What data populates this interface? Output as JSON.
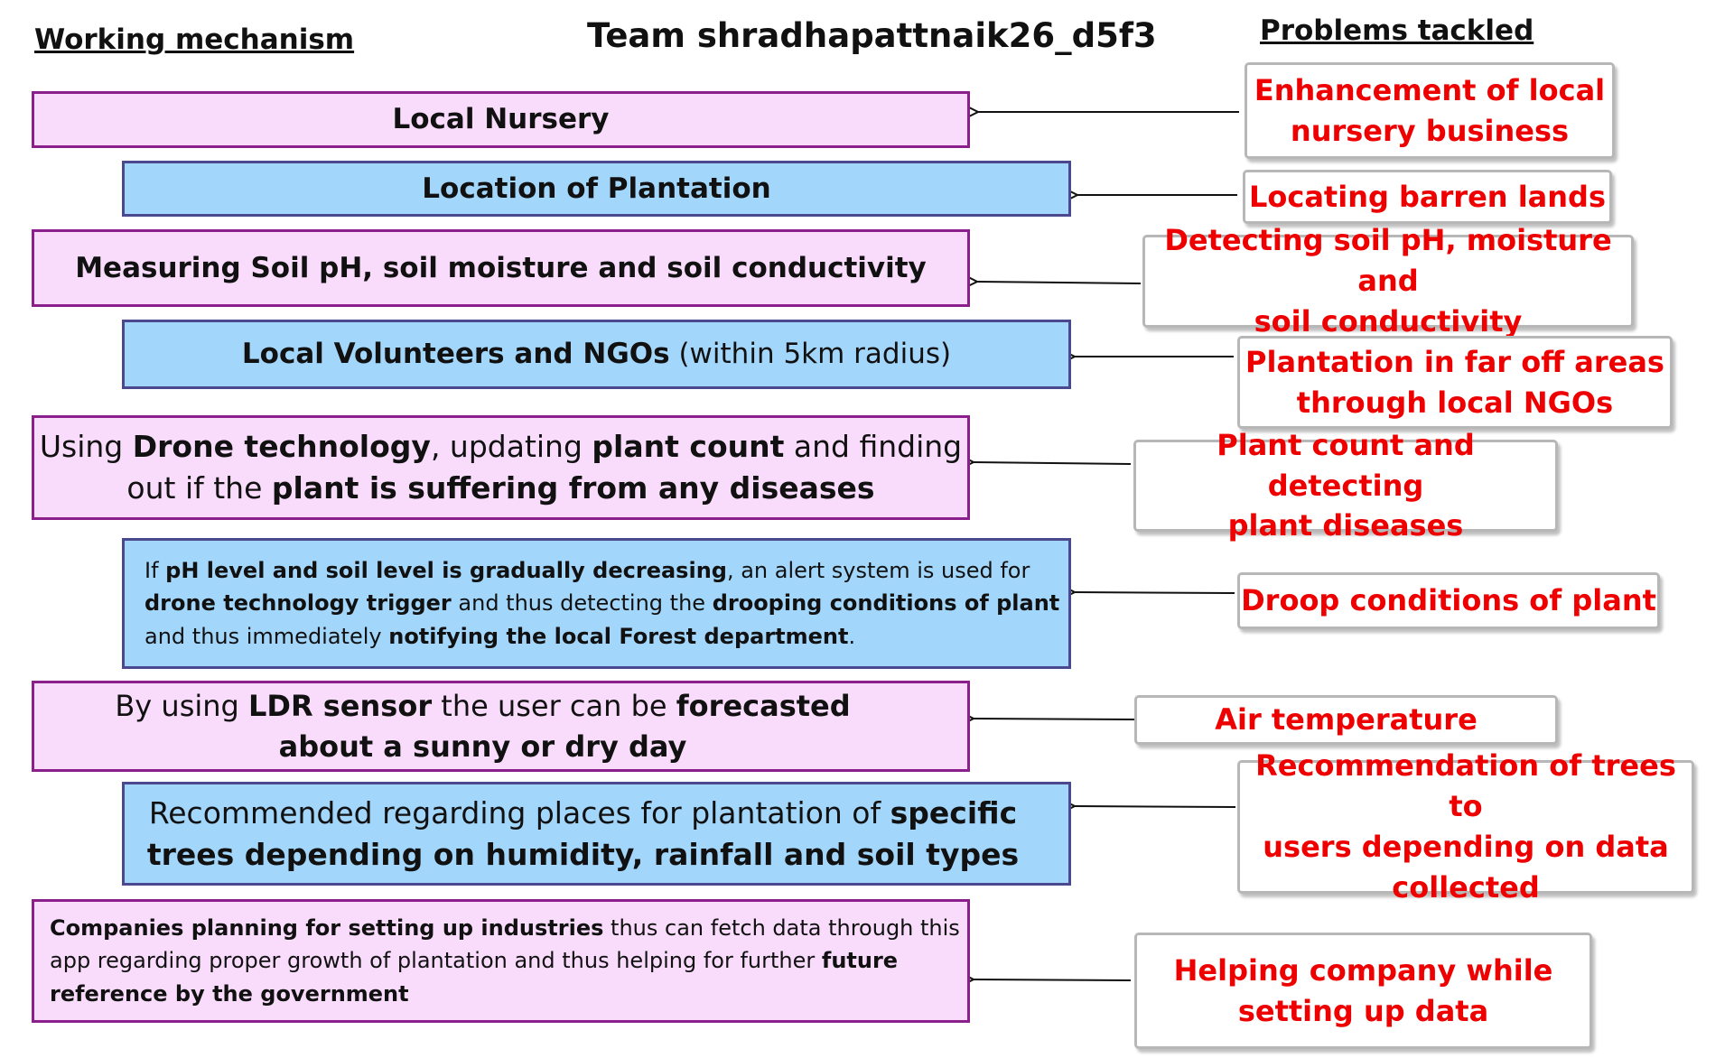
{
  "headers": {
    "working_mechanism": "Working mechanism",
    "team": "Team shradhapattnaik26_d5f3",
    "problems_tackled": "Problems tackled"
  },
  "mechanism": {
    "local_nursery": "Local Nursery",
    "location": "Location of Plantation",
    "soil": "Measuring Soil pH, soil moisture and soil conductivity",
    "volunteers_bold": "Local Volunteers and NGOs",
    "volunteers_rest": " (within 5km radius)",
    "drone": {
      "t1": "Using ",
      "b1": "Drone technology",
      "t2": ", updating ",
      "b2": "plant count",
      "t3": " and finding",
      "t4": "out if the ",
      "b3": "plant is suffering from any diseases"
    },
    "alert": {
      "t1": "If ",
      "b1": "pH level and soil level is gradually decreasing",
      "t2": ", an alert system is used for",
      "b2": "drone technology trigger",
      "t3": " and thus detecting the ",
      "b3": "drooping conditions of plant",
      "t4": "and thus immediately ",
      "b4": "notifying the local Forest department",
      "t5": "."
    },
    "ldr": {
      "t1": "By using ",
      "b1": "LDR sensor",
      "t2": " the user can be ",
      "b2": "forecasted",
      "b3": "about a sunny or dry day"
    },
    "recommend": {
      "t1": "Recommended regarding places for plantation of ",
      "b1": "specific",
      "b2": "trees depending on humidity, rainfall and soil types"
    },
    "companies": {
      "b1": "Companies planning for setting up industries",
      "t1": " thus can fetch data through this",
      "t2": "app regarding proper growth of plantation and thus helping for further ",
      "b2": "future",
      "b3": "reference by the government"
    }
  },
  "problems": {
    "p1_l1": "Enhancement of local",
    "p1_l2": "nursery business",
    "p2": "Locating barren lands",
    "p3_l1": "Detecting soil pH, moisture and",
    "p3_l2": "soil conductivity",
    "p4_l1": "Plantation in far off areas",
    "p4_l2": "through local NGOs",
    "p5_l1": "Plant count and detecting",
    "p5_l2": "plant diseases",
    "p6": "Droop conditions of plant",
    "p7": "Air temperature",
    "p8_l1": "Recommendation of trees to",
    "p8_l2": "users depending on data",
    "p8_l3": "collected",
    "p9_l1": "Helping company while",
    "p9_l2": "setting up data"
  },
  "colors": {
    "pink_fill": "#f9dcfb",
    "pink_border": "#8b1f8b",
    "blue_fill": "#a3d6fb",
    "blue_border": "#4a4990",
    "problem_text": "#ee0000"
  }
}
